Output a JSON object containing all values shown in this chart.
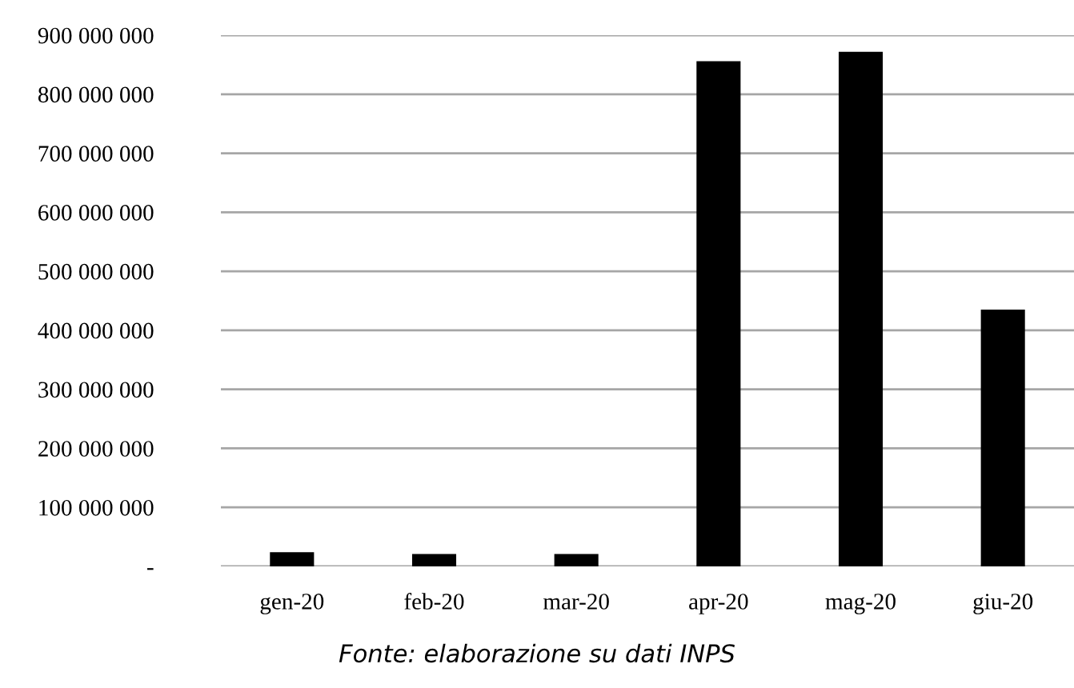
{
  "chart_data": {
    "type": "bar",
    "categories": [
      "gen-20",
      "feb-20",
      "mar-20",
      "apr-20",
      "mag-20",
      "giu-20"
    ],
    "values": [
      24000000,
      21000000,
      21000000,
      856000000,
      872000000,
      435000000
    ],
    "color": "#000000",
    "ylim": [
      0,
      900000000
    ],
    "yticks": [
      {
        "value": 0,
        "label": "-"
      },
      {
        "value": 100000000,
        "label": "100 000 000"
      },
      {
        "value": 200000000,
        "label": "200 000 000"
      },
      {
        "value": 300000000,
        "label": "300 000 000"
      },
      {
        "value": 400000000,
        "label": "400 000 000"
      },
      {
        "value": 500000000,
        "label": "500 000 000"
      },
      {
        "value": 600000000,
        "label": "600 000 000"
      },
      {
        "value": 700000000,
        "label": "700 000 000"
      },
      {
        "value": 800000000,
        "label": "800 000 000"
      },
      {
        "value": 900000000,
        "label": "900 000 000"
      }
    ],
    "grid": "y",
    "annotations": [
      "Fonte: elaborazione su dati INPS"
    ]
  }
}
